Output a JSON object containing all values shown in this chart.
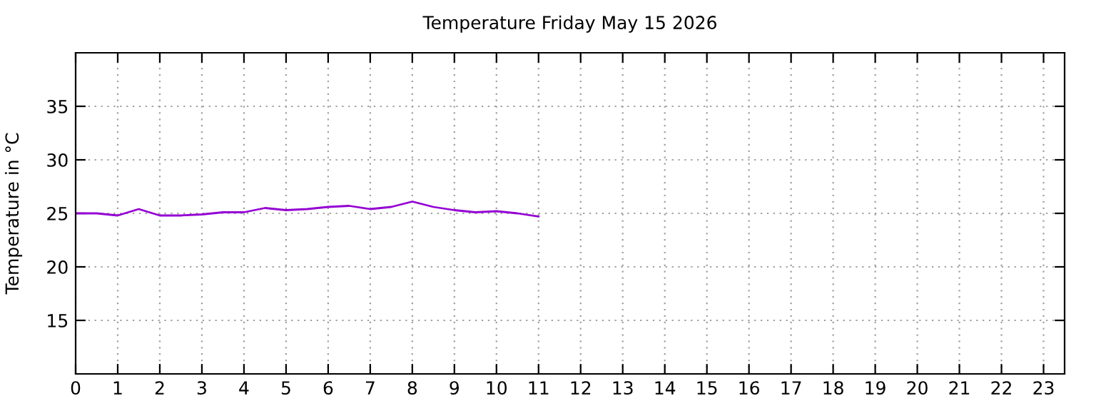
{
  "chart_data": {
    "type": "line",
    "title": "Temperature Friday May 15 2026",
    "ylabel": "Temperature in °C",
    "x": [
      0,
      0.5,
      1,
      1.5,
      2,
      2.5,
      3,
      3.5,
      4,
      4.5,
      5,
      5.5,
      6,
      6.5,
      7,
      7.5,
      8,
      8.5,
      9,
      9.5,
      10,
      10.5,
      11
    ],
    "series": [
      {
        "color": "#9400d3",
        "values": [
          25.0,
          25.0,
          24.8,
          25.4,
          24.8,
          24.8,
          24.9,
          25.1,
          25.1,
          25.5,
          25.3,
          25.4,
          25.6,
          25.7,
          25.4,
          25.6,
          26.1,
          25.6,
          25.3,
          25.1,
          25.2,
          25.0,
          24.7
        ]
      }
    ],
    "xlim": [
      0,
      23.5
    ],
    "xticks": [
      0,
      1,
      2,
      3,
      4,
      5,
      6,
      7,
      8,
      9,
      10,
      11,
      12,
      13,
      14,
      15,
      16,
      17,
      18,
      19,
      20,
      21,
      22,
      23
    ],
    "ylim": [
      10,
      40
    ],
    "yticks": [
      15,
      20,
      25,
      30,
      35
    ],
    "grid": true,
    "line_style": "solid",
    "marker": "none"
  }
}
